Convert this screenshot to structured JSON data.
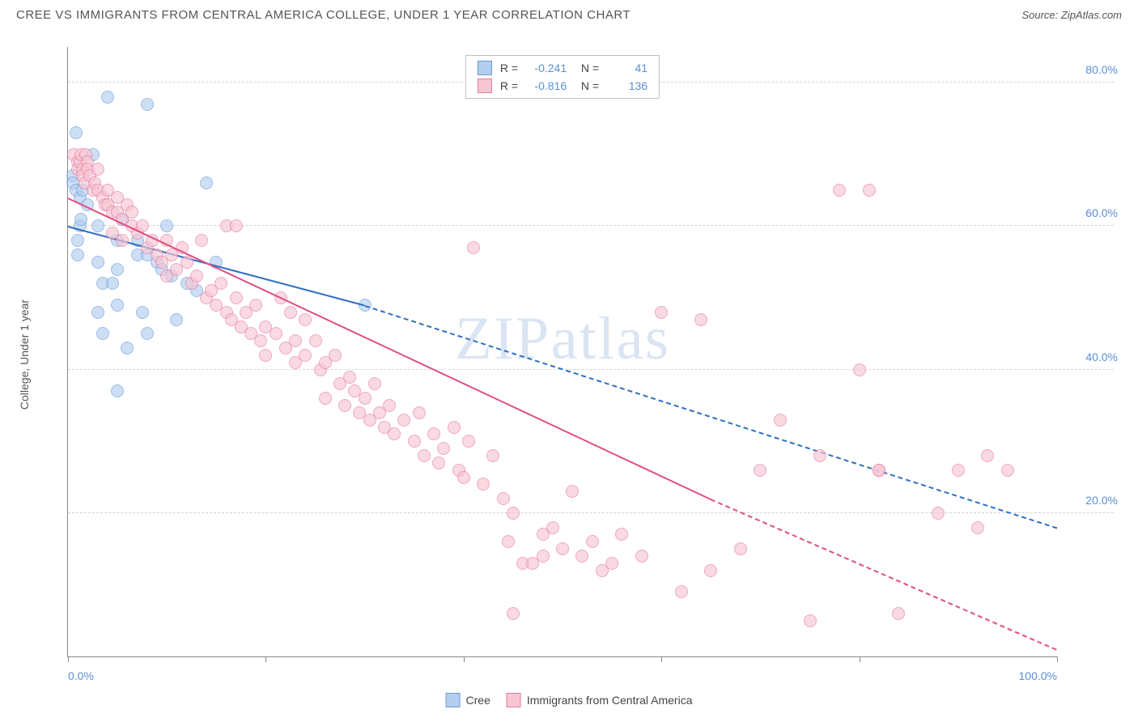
{
  "title": "CREE VS IMMIGRANTS FROM CENTRAL AMERICA COLLEGE, UNDER 1 YEAR CORRELATION CHART",
  "source_label": "Source: ZipAtlas.com",
  "watermark": "ZIPatlas",
  "y_axis_label": "College, Under 1 year",
  "chart": {
    "type": "scatter",
    "background_color": "#ffffff",
    "grid_color": "#d5d5d5",
    "axis_color": "#888888",
    "tick_label_color": "#5a8fd6",
    "xlim": [
      0,
      100
    ],
    "ylim": [
      0,
      85
    ],
    "x_ticks": [
      0,
      20,
      40,
      60,
      80,
      100
    ],
    "x_tick_labels": [
      "0.0%",
      "",
      "",
      "",
      "",
      "100.0%"
    ],
    "y_gridlines": [
      20,
      40,
      60,
      80
    ],
    "y_tick_labels": [
      "20.0%",
      "40.0%",
      "60.0%",
      "80.0%"
    ],
    "marker_radius": 8,
    "marker_opacity": 0.65
  },
  "series": [
    {
      "name": "Cree",
      "color_fill": "#b3cef0",
      "color_stroke": "#6b9ad4",
      "line_color": "#2f6fc2",
      "R": "-0.241",
      "N": "41",
      "trend_solid": {
        "x1": 0,
        "y1": 60,
        "x2": 30,
        "y2": 49
      },
      "trend_dash": {
        "x1": 30,
        "y1": 49,
        "x2": 100,
        "y2": 18
      },
      "points": [
        [
          0.5,
          67
        ],
        [
          0.5,
          66
        ],
        [
          0.8,
          65
        ],
        [
          0.8,
          73
        ],
        [
          1,
          56
        ],
        [
          1,
          58
        ],
        [
          1.2,
          60
        ],
        [
          1.2,
          64
        ],
        [
          1.3,
          61
        ],
        [
          1.5,
          65
        ],
        [
          2,
          63
        ],
        [
          2.5,
          70
        ],
        [
          3,
          60
        ],
        [
          3,
          55
        ],
        [
          3,
          48
        ],
        [
          3.5,
          52
        ],
        [
          3.5,
          45
        ],
        [
          4,
          78
        ],
        [
          4.5,
          52
        ],
        [
          5,
          58
        ],
        [
          5,
          54
        ],
        [
          5,
          49
        ],
        [
          5,
          37
        ],
        [
          5.5,
          61
        ],
        [
          6,
          43
        ],
        [
          7,
          58
        ],
        [
          7,
          56
        ],
        [
          7.5,
          48
        ],
        [
          8,
          77
        ],
        [
          8,
          56
        ],
        [
          8,
          45
        ],
        [
          9,
          55
        ],
        [
          9.5,
          54
        ],
        [
          10,
          60
        ],
        [
          10.5,
          53
        ],
        [
          11,
          47
        ],
        [
          12,
          52
        ],
        [
          13,
          51
        ],
        [
          14,
          66
        ],
        [
          15,
          55
        ],
        [
          30,
          49
        ]
      ]
    },
    {
      "name": "Immigrants from Central America",
      "color_fill": "#f7c6d3",
      "color_stroke": "#e77aa0",
      "line_color": "#e04e86",
      "R": "-0.816",
      "N": "136",
      "trend_solid": {
        "x1": 0,
        "y1": 64,
        "x2": 65,
        "y2": 22
      },
      "trend_dash": {
        "x1": 65,
        "y1": 22,
        "x2": 100,
        "y2": 1
      },
      "points": [
        [
          0.6,
          70
        ],
        [
          1,
          69
        ],
        [
          1,
          68
        ],
        [
          1.2,
          69
        ],
        [
          1.3,
          70
        ],
        [
          1.5,
          68
        ],
        [
          1.5,
          67
        ],
        [
          1.7,
          66
        ],
        [
          1.8,
          70
        ],
        [
          2,
          69
        ],
        [
          2,
          68
        ],
        [
          2.2,
          67
        ],
        [
          2.5,
          65
        ],
        [
          2.7,
          66
        ],
        [
          3,
          68
        ],
        [
          3,
          65
        ],
        [
          3.5,
          64
        ],
        [
          3.8,
          63
        ],
        [
          4,
          65
        ],
        [
          4,
          63
        ],
        [
          4.5,
          62
        ],
        [
          4.5,
          59
        ],
        [
          5,
          64
        ],
        [
          5,
          62
        ],
        [
          5.5,
          61
        ],
        [
          5.5,
          58
        ],
        [
          6,
          63
        ],
        [
          6.5,
          60
        ],
        [
          6.5,
          62
        ],
        [
          7,
          59
        ],
        [
          7.5,
          60
        ],
        [
          8,
          57
        ],
        [
          8.5,
          58
        ],
        [
          9,
          56
        ],
        [
          9.5,
          55
        ],
        [
          10,
          58
        ],
        [
          10,
          53
        ],
        [
          10.5,
          56
        ],
        [
          11,
          54
        ],
        [
          11.5,
          57
        ],
        [
          12,
          55
        ],
        [
          12.5,
          52
        ],
        [
          13,
          53
        ],
        [
          13.5,
          58
        ],
        [
          14,
          50
        ],
        [
          14.5,
          51
        ],
        [
          15,
          49
        ],
        [
          15.5,
          52
        ],
        [
          16,
          60
        ],
        [
          16,
          48
        ],
        [
          16.5,
          47
        ],
        [
          17,
          50
        ],
        [
          17,
          60
        ],
        [
          17.5,
          46
        ],
        [
          18,
          48
        ],
        [
          18.5,
          45
        ],
        [
          19,
          49
        ],
        [
          19.5,
          44
        ],
        [
          20,
          46
        ],
        [
          20,
          42
        ],
        [
          21,
          45
        ],
        [
          21.5,
          50
        ],
        [
          22,
          43
        ],
        [
          22.5,
          48
        ],
        [
          23,
          41
        ],
        [
          23,
          44
        ],
        [
          24,
          42
        ],
        [
          24,
          47
        ],
        [
          25,
          44
        ],
        [
          25.5,
          40
        ],
        [
          26,
          41
        ],
        [
          26,
          36
        ],
        [
          27,
          42
        ],
        [
          27.5,
          38
        ],
        [
          28,
          35
        ],
        [
          28.5,
          39
        ],
        [
          29,
          37
        ],
        [
          29.5,
          34
        ],
        [
          30,
          36
        ],
        [
          30.5,
          33
        ],
        [
          31,
          38
        ],
        [
          31.5,
          34
        ],
        [
          32,
          32
        ],
        [
          32.5,
          35
        ],
        [
          33,
          31
        ],
        [
          34,
          33
        ],
        [
          35,
          30
        ],
        [
          35.5,
          34
        ],
        [
          36,
          28
        ],
        [
          37,
          31
        ],
        [
          37.5,
          27
        ],
        [
          38,
          29
        ],
        [
          39,
          32
        ],
        [
          39.5,
          26
        ],
        [
          40,
          25
        ],
        [
          40.5,
          30
        ],
        [
          41,
          57
        ],
        [
          42,
          24
        ],
        [
          43,
          28
        ],
        [
          44,
          22
        ],
        [
          44.5,
          16
        ],
        [
          45,
          20
        ],
        [
          46,
          13
        ],
        [
          47,
          13
        ],
        [
          48,
          17
        ],
        [
          48,
          14
        ],
        [
          49,
          18
        ],
        [
          50,
          15
        ],
        [
          51,
          23
        ],
        [
          52,
          14
        ],
        [
          53,
          16
        ],
        [
          54,
          12
        ],
        [
          55,
          13
        ],
        [
          56,
          17
        ],
        [
          58,
          14
        ],
        [
          60,
          48
        ],
        [
          62,
          9
        ],
        [
          64,
          47
        ],
        [
          65,
          12
        ],
        [
          68,
          15
        ],
        [
          70,
          26
        ],
        [
          72,
          33
        ],
        [
          75,
          5
        ],
        [
          76,
          28
        ],
        [
          78,
          65
        ],
        [
          80,
          40
        ],
        [
          81,
          65
        ],
        [
          82,
          26
        ],
        [
          82,
          26
        ],
        [
          84,
          6
        ],
        [
          88,
          20
        ],
        [
          90,
          26
        ],
        [
          92,
          18
        ],
        [
          93,
          28
        ],
        [
          95,
          26
        ],
        [
          45,
          6
        ]
      ]
    }
  ],
  "legend": {
    "items": [
      {
        "label": "Cree",
        "fill": "#b3cef0",
        "stroke": "#6b9ad4"
      },
      {
        "label": "Immigrants from Central America",
        "fill": "#f7c6d3",
        "stroke": "#e77aa0"
      }
    ]
  }
}
